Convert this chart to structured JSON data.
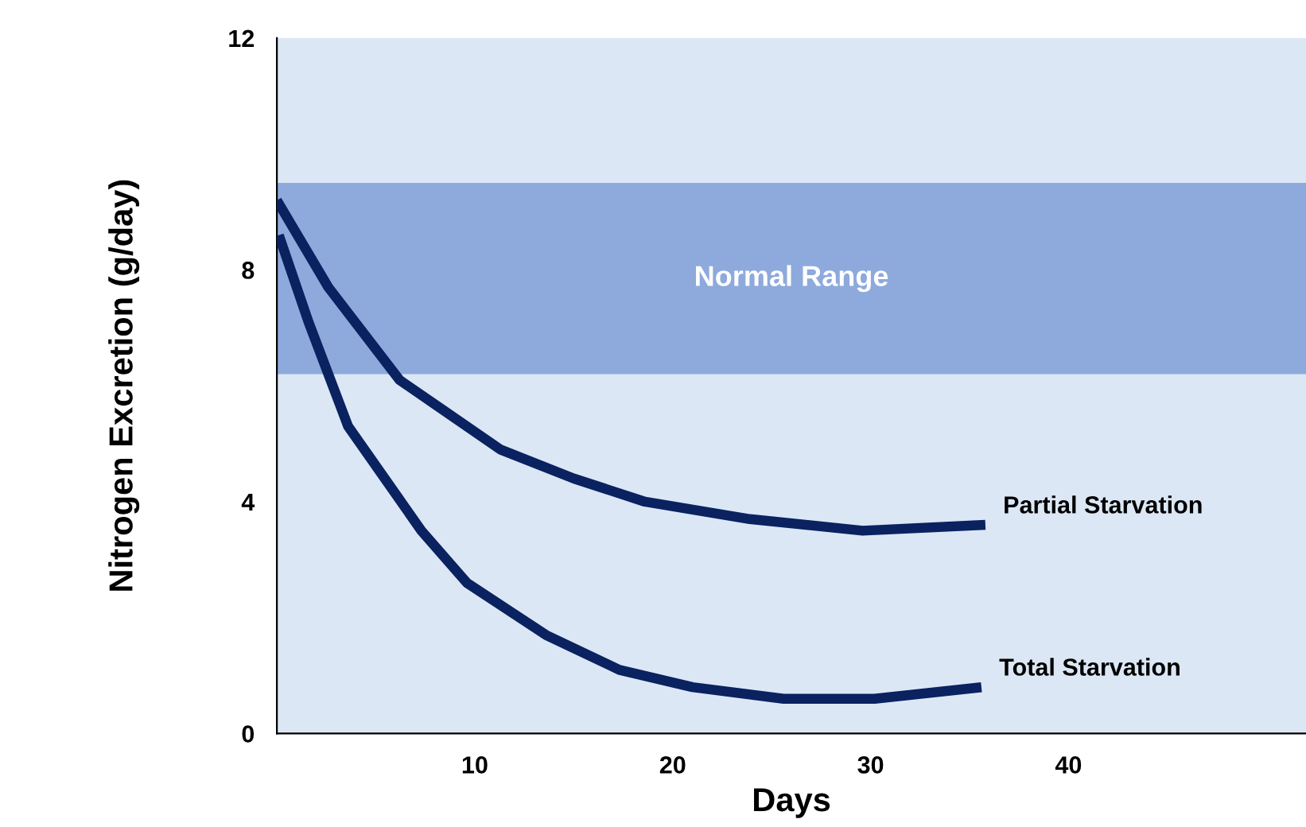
{
  "chart_data": {
    "type": "line",
    "xlabel": "Days",
    "ylabel": "Nitrogen Excretion (g/day)",
    "xlim": [
      0,
      52
    ],
    "xticks": [
      10,
      20,
      30,
      40
    ],
    "ylim": [
      0,
      12
    ],
    "yticks": [
      0,
      4,
      8,
      12
    ],
    "grid": false,
    "legend": false,
    "marker": "none",
    "line_style": "solid",
    "series": [
      {
        "name": "Partial Starvation",
        "color": "#0a2260",
        "x": [
          0,
          2.6,
          6.2,
          11.3,
          15,
          18.6,
          23.9,
          29.6,
          35.8
        ],
        "values": [
          9.2,
          7.7,
          6.1,
          4.9,
          4.4,
          4.0,
          3.7,
          3.5,
          3.6
        ]
      },
      {
        "name": "Total Starvation",
        "color": "#0a2260",
        "x": [
          0.1,
          1.6,
          3.6,
          7.3,
          9.6,
          13.6,
          17.3,
          21,
          25.6,
          30.2,
          35.6
        ],
        "values": [
          8.6,
          7.1,
          5.3,
          3.5,
          2.6,
          1.7,
          1.1,
          0.8,
          0.6,
          0.6,
          0.8
        ]
      }
    ],
    "bands": [
      {
        "axis": "y",
        "from": 6.2,
        "to": 9.5,
        "label": "Normal Range",
        "color": "#8eaadc"
      }
    ]
  }
}
